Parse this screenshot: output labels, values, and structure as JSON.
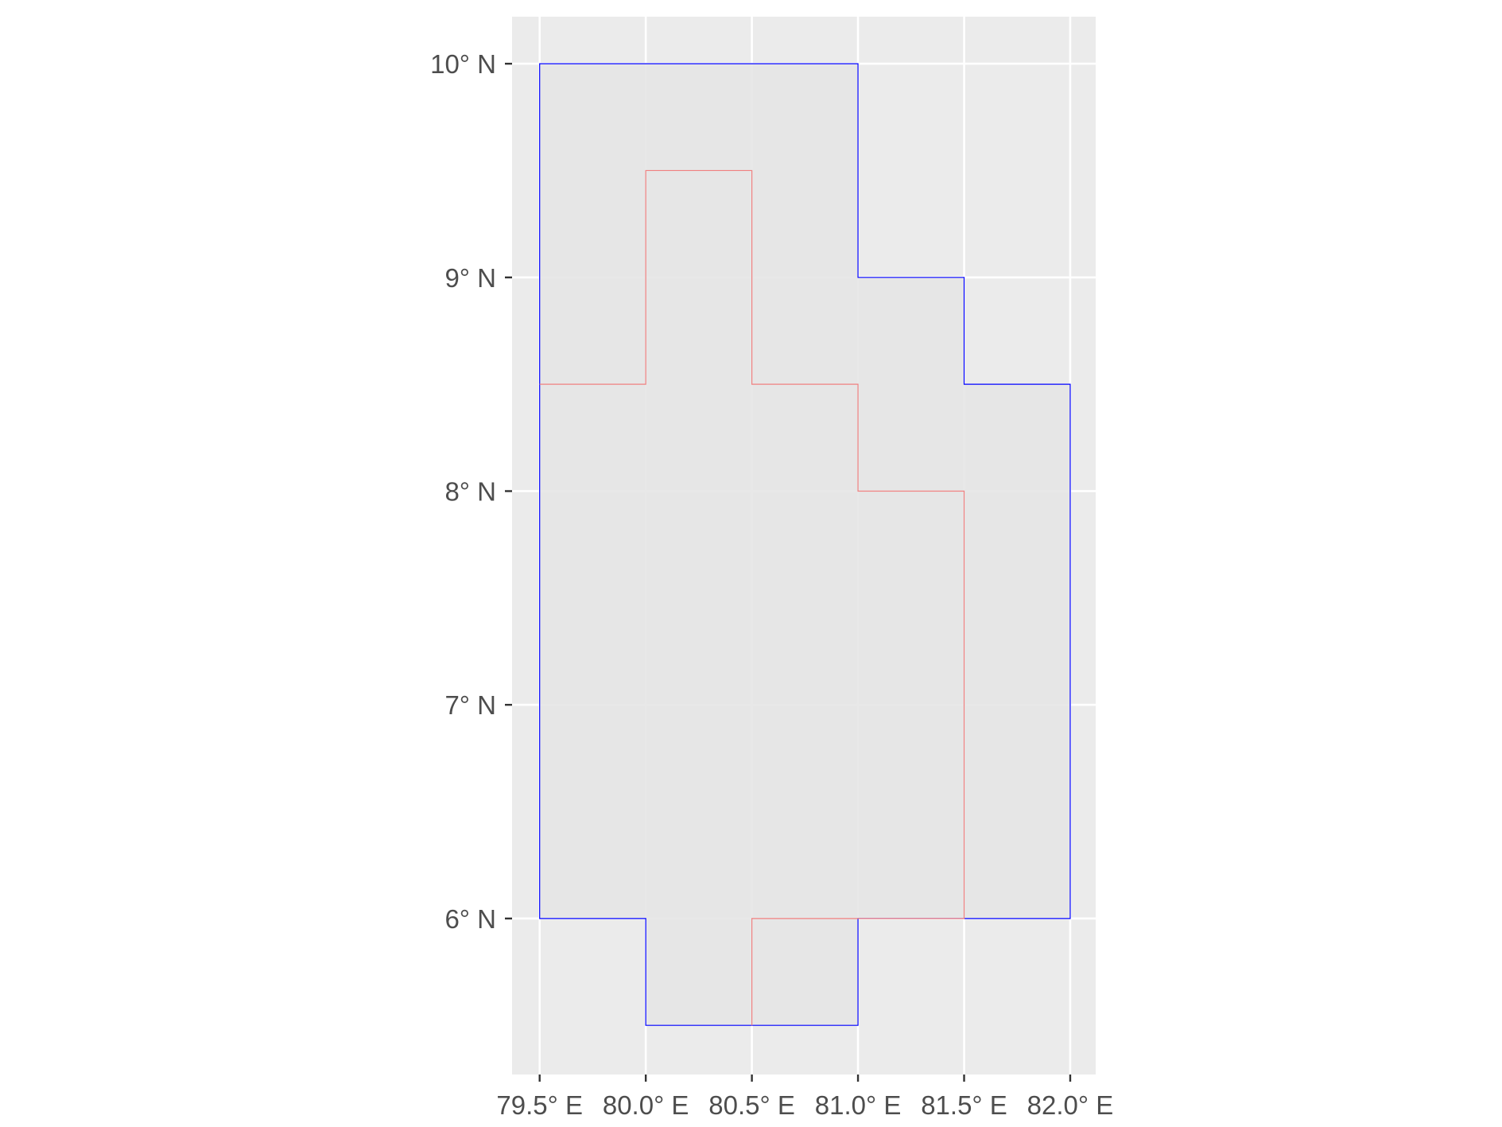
{
  "chart_data": {
    "type": "map",
    "title": "",
    "xlabel": "",
    "ylabel": "",
    "xlim": [
      79.37,
      82.12
    ],
    "ylim": [
      5.27,
      10.22
    ],
    "grid": true,
    "legend": "none",
    "colors": {
      "panel_background": "#ebebeb",
      "grid_line": "#ffffff",
      "fill": "#e5e5e5",
      "outline_a": "#0000ff",
      "outline_b": "#f08080",
      "tick_label": "#4d4d4d",
      "tick_mark": "#333333"
    },
    "x_ticks": [
      {
        "value": 79.5,
        "label": "79.5° E"
      },
      {
        "value": 80.0,
        "label": "80.0° E"
      },
      {
        "value": 80.5,
        "label": "80.5° E"
      },
      {
        "value": 81.0,
        "label": "81.0° E"
      },
      {
        "value": 81.5,
        "label": "81.5° E"
      },
      {
        "value": 82.0,
        "label": "82.0° E"
      }
    ],
    "y_ticks": [
      {
        "value": 6,
        "label": "6° N"
      },
      {
        "value": 7,
        "label": "7° N"
      },
      {
        "value": 8,
        "label": "8° N"
      },
      {
        "value": 9,
        "label": "9° N"
      },
      {
        "value": 10,
        "label": "10° N"
      }
    ],
    "polygons": [
      {
        "outline_color": "#0000ff",
        "fill": "#e5e5e5",
        "coordinates": [
          [
            79.5,
            10.0
          ],
          [
            81.0,
            10.0
          ],
          [
            81.0,
            9.0
          ],
          [
            81.5,
            9.0
          ],
          [
            81.5,
            8.5
          ],
          [
            82.0,
            8.5
          ],
          [
            82.0,
            6.0
          ],
          [
            81.0,
            6.0
          ],
          [
            81.0,
            5.5
          ],
          [
            80.0,
            5.5
          ],
          [
            80.0,
            6.0
          ],
          [
            79.5,
            6.0
          ]
        ]
      },
      {
        "outline_color": "#f08080",
        "fill": "none",
        "coordinates": [
          [
            79.5,
            8.5
          ],
          [
            80.0,
            8.5
          ],
          [
            80.0,
            9.5
          ],
          [
            80.5,
            9.5
          ],
          [
            80.5,
            8.5
          ],
          [
            81.0,
            8.5
          ],
          [
            81.0,
            8.0
          ],
          [
            81.5,
            8.0
          ],
          [
            81.5,
            6.0
          ],
          [
            81.0,
            6.0
          ],
          [
            80.5,
            6.0
          ],
          [
            80.5,
            5.5
          ]
        ]
      }
    ]
  }
}
